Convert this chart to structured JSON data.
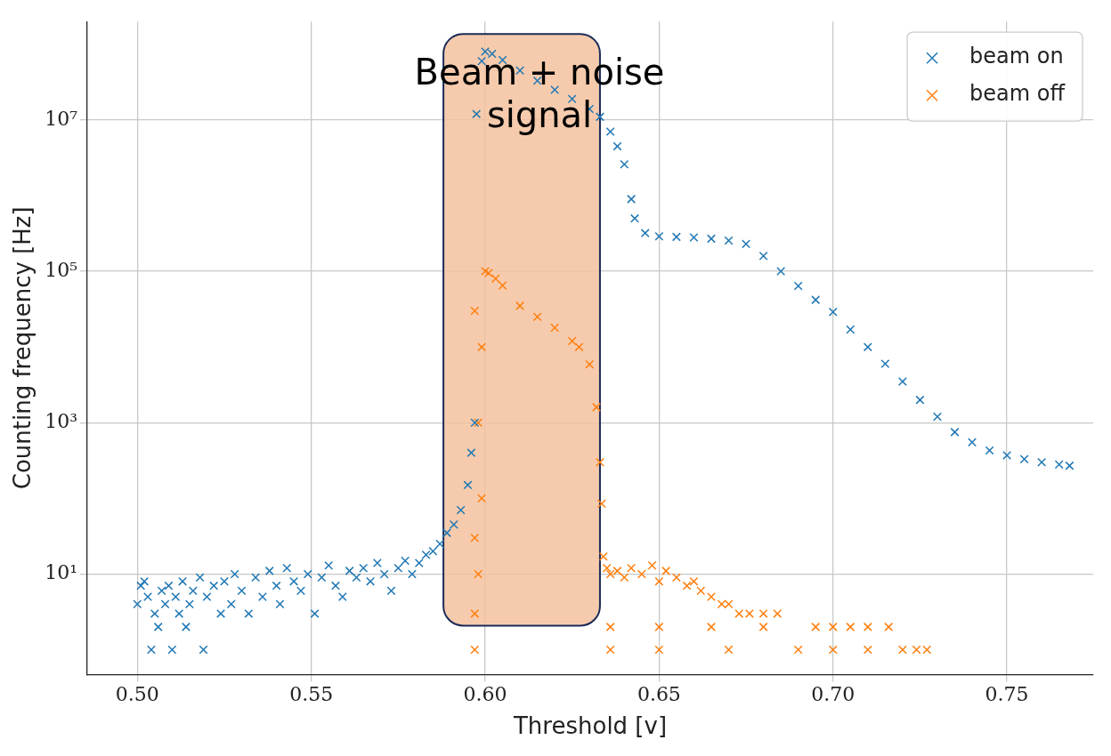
{
  "chart_data": {
    "type": "scatter",
    "xlabel": "Threshold [v]",
    "ylabel": "Counting frequency [Hz]",
    "xlim": [
      0.4856,
      0.7748
    ],
    "ylim": [
      0.47,
      200000000.0
    ],
    "xticks": [
      {
        "value": 0.5,
        "label": "0.50"
      },
      {
        "value": 0.55,
        "label": "0.55"
      },
      {
        "value": 0.6,
        "label": "0.60"
      },
      {
        "value": 0.65,
        "label": "0.65"
      },
      {
        "value": 0.7,
        "label": "0.70"
      },
      {
        "value": 0.75,
        "label": "0.75"
      }
    ],
    "yticks": [
      {
        "value": 10,
        "label": "10¹"
      },
      {
        "value": 1000,
        "label": "10³"
      },
      {
        "value": 100000,
        "label": "10⁵"
      },
      {
        "value": 10000000,
        "label": "10⁷"
      }
    ],
    "log": "y",
    "grid": true,
    "legend": "top right",
    "marker": "cross",
    "bands": [
      {
        "axis": "x",
        "from": 0.588,
        "to": 0.633,
        "label": "Beam + noise signal",
        "color": "#f4c29f"
      }
    ],
    "series": [
      {
        "name": "beam on",
        "color": "#1f77b4",
        "x": [
          0.5,
          0.501,
          0.502,
          0.503,
          0.504,
          0.505,
          0.506,
          0.507,
          0.508,
          0.509,
          0.51,
          0.511,
          0.512,
          0.513,
          0.514,
          0.515,
          0.516,
          0.518,
          0.519,
          0.52,
          0.522,
          0.524,
          0.525,
          0.527,
          0.528,
          0.53,
          0.532,
          0.534,
          0.536,
          0.538,
          0.54,
          0.541,
          0.543,
          0.545,
          0.547,
          0.549,
          0.551,
          0.553,
          0.555,
          0.557,
          0.559,
          0.561,
          0.563,
          0.565,
          0.567,
          0.569,
          0.571,
          0.573,
          0.575,
          0.577,
          0.579,
          0.581,
          0.583,
          0.585,
          0.587,
          0.589,
          0.591,
          0.593,
          0.595,
          0.596,
          0.597,
          0.5975,
          0.599,
          0.6,
          0.602,
          0.605,
          0.61,
          0.615,
          0.62,
          0.625,
          0.63,
          0.633,
          0.636,
          0.638,
          0.64,
          0.642,
          0.643,
          0.646,
          0.65,
          0.655,
          0.66,
          0.665,
          0.67,
          0.675,
          0.68,
          0.685,
          0.69,
          0.695,
          0.7,
          0.705,
          0.71,
          0.715,
          0.72,
          0.725,
          0.73,
          0.735,
          0.74,
          0.745,
          0.75,
          0.755,
          0.76,
          0.765,
          0.768
        ],
        "values": [
          4,
          7,
          8,
          5,
          1,
          3,
          2,
          6,
          4,
          7,
          1,
          5,
          3,
          8,
          2,
          4,
          6,
          9,
          1,
          5,
          7,
          3,
          8,
          4,
          10,
          6,
          3,
          9,
          5,
          11,
          7,
          4,
          12,
          8,
          6,
          10,
          3,
          9,
          13,
          7,
          5,
          11,
          9,
          12,
          8,
          14,
          10,
          6,
          12,
          15,
          10,
          14,
          18,
          20,
          25,
          35,
          45,
          70,
          150,
          400,
          1000,
          12000000,
          60000000,
          80000000,
          75000000,
          62000000,
          45000000,
          33000000,
          25000000,
          19000000,
          14000000,
          11000000,
          7000000,
          4500000,
          2600000,
          900000,
          500000,
          320000,
          290000,
          285000,
          280000,
          270000,
          255000,
          230000,
          160000,
          100000,
          64000,
          42000,
          29000,
          17000,
          10000,
          6000,
          3500,
          2000,
          1200,
          750,
          550,
          430,
          370,
          330,
          300,
          280,
          270
        ]
      },
      {
        "name": "beam off",
        "color": "#ff7f0e",
        "x": [
          0.597,
          0.597,
          0.597,
          0.597,
          0.598,
          0.598,
          0.599,
          0.599,
          0.6,
          0.601,
          0.603,
          0.605,
          0.61,
          0.615,
          0.62,
          0.625,
          0.627,
          0.63,
          0.632,
          0.633,
          0.6335,
          0.634,
          0.635,
          0.636,
          0.638,
          0.64,
          0.642,
          0.645,
          0.648,
          0.65,
          0.652,
          0.655,
          0.658,
          0.66,
          0.662,
          0.665,
          0.668,
          0.67,
          0.673,
          0.676,
          0.68,
          0.684,
          0.636,
          0.65,
          0.665,
          0.68,
          0.695,
          0.7,
          0.705,
          0.71,
          0.716,
          0.636,
          0.65,
          0.67,
          0.69,
          0.7,
          0.71,
          0.72,
          0.724,
          0.727
        ],
        "values": [
          1,
          3,
          30,
          30000,
          10,
          1000,
          100,
          10000,
          100000,
          95000,
          80000,
          65000,
          35000,
          25000,
          18000,
          12000,
          10000,
          5900,
          1600,
          300,
          85,
          17,
          12,
          10,
          11,
          9,
          12,
          10,
          13,
          8,
          11,
          9,
          7,
          8,
          6,
          5,
          4,
          4,
          3,
          3,
          3,
          3,
          2,
          2,
          2,
          2,
          2,
          2,
          2,
          2,
          2,
          1,
          1,
          1,
          1,
          1,
          1,
          1,
          1,
          1
        ]
      }
    ]
  }
}
